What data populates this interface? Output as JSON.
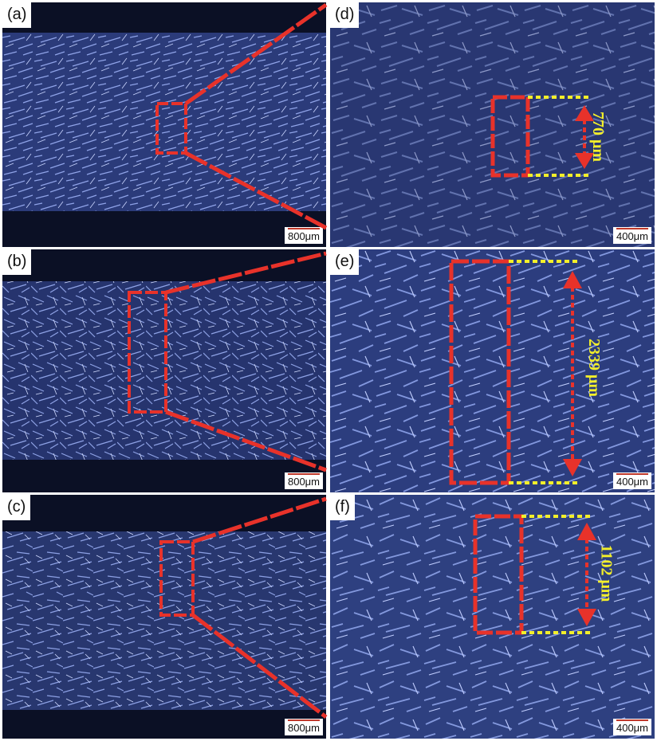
{
  "panels": [
    {
      "label": "(a)",
      "scale": "800μm"
    },
    {
      "label": "(b)",
      "scale": "800μm"
    },
    {
      "label": "(c)",
      "scale": "800μm"
    },
    {
      "label": "(d)",
      "scale": "400μm",
      "measurement": "770 μm"
    },
    {
      "label": "(e)",
      "scale": "400μm",
      "measurement": "2339 μm"
    },
    {
      "label": "(f)",
      "scale": "400μm",
      "measurement": "1102 μm"
    }
  ],
  "colors": {
    "fiber": "#5c74c8",
    "background_dark": "#0b1025",
    "box": "#e8322a",
    "guide": "#f3ef2a"
  }
}
